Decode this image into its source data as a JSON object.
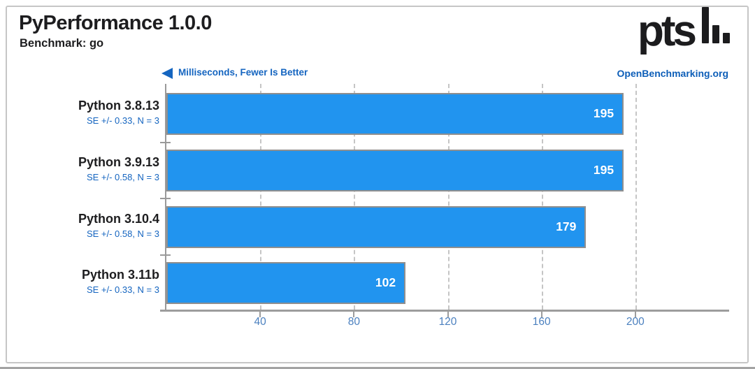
{
  "header": {
    "title": "PyPerformance 1.0.0",
    "subtitle": "Benchmark: go",
    "logo_text": "pts",
    "site_link": "OpenBenchmarking.org"
  },
  "chart_data": {
    "type": "bar",
    "orientation": "horizontal",
    "title": "PyPerformance 1.0.0",
    "subtitle": "Benchmark: go",
    "axis_label": "Milliseconds, Fewer Is Better",
    "categories": [
      "Python 3.8.13",
      "Python 3.9.13",
      "Python 3.10.4",
      "Python 3.11b"
    ],
    "values": [
      195,
      195,
      179,
      102
    ],
    "annotations": [
      "SE +/- 0.33, N = 3",
      "SE +/- 0.58, N = 3",
      "SE +/- 0.58, N = 3",
      "SE +/- 0.33, N = 3"
    ],
    "xticks": [
      40,
      80,
      120,
      160,
      200
    ],
    "xlim": [
      0,
      240
    ],
    "grid": "vertical-dashed",
    "legend_position": "none",
    "colors": {
      "bar_fill": "#2194ef",
      "bar_border": "#8f8f8f",
      "value_text": "#ffffff",
      "axis": "#9d9d9d",
      "gridline": "#c5c5c5",
      "header_blue": "#1565c0",
      "tick_text": "#4b80bf",
      "site_blue": "#0d5eb8",
      "title_text": "#1d1d1f"
    }
  }
}
